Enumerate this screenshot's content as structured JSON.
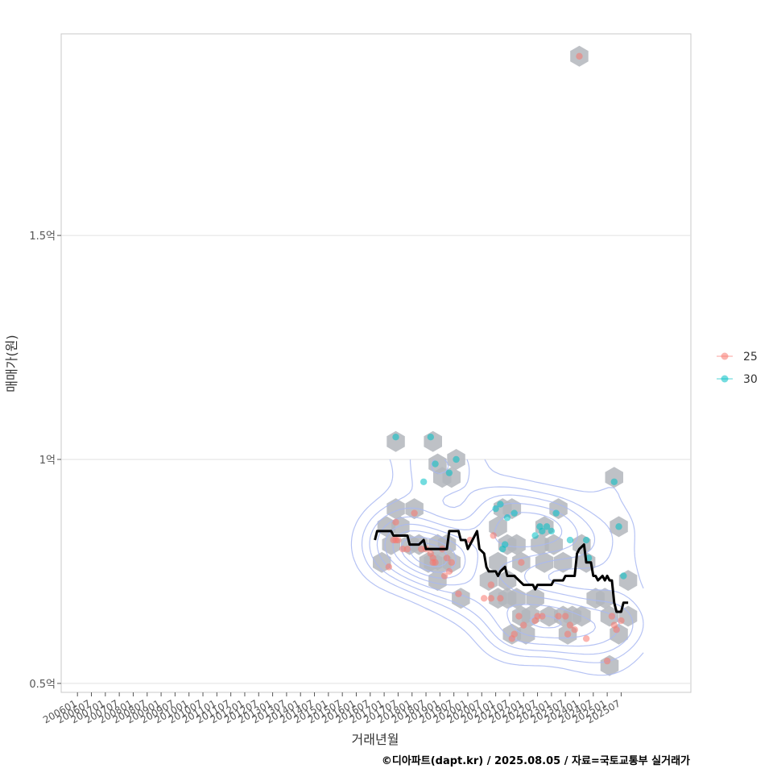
{
  "chart_data": {
    "type": "scatter",
    "xlabel": "거래년월",
    "ylabel": "매매가(원)",
    "caption": "©디아파트(dapt.kr) / 2025.08.05 / 자료=국토교통부 실거래가",
    "x_ticks": [
      "200601",
      "200607",
      "200701",
      "200707",
      "200801",
      "200807",
      "200901",
      "200907",
      "201001",
      "201007",
      "201101",
      "201107",
      "201201",
      "201207",
      "201301",
      "201307",
      "201401",
      "201407",
      "201501",
      "201507",
      "201601",
      "201607",
      "201701",
      "201707",
      "201801",
      "201807",
      "201901",
      "201907",
      "202001",
      "202007",
      "202101",
      "202107",
      "202201",
      "202207",
      "202301",
      "202307",
      "202401",
      "202407",
      "202501",
      "202507"
    ],
    "x_range": [
      "2005-06",
      "2028-01"
    ],
    "y_ticks": [
      {
        "value": 0.5,
        "label": "0.5억"
      },
      {
        "value": 1.0,
        "label": "1억"
      },
      {
        "value": 1.5,
        "label": "1.5억"
      }
    ],
    "ylim": [
      0.48,
      1.95
    ],
    "grid": true,
    "legend_position": "right",
    "series": [
      {
        "name": "25",
        "color": "#F8766D",
        "points": [
          [
            "2017-03",
            0.76
          ],
          [
            "2017-05",
            0.82
          ],
          [
            "2017-06",
            0.82
          ],
          [
            "2017-06",
            0.86
          ],
          [
            "2017-07",
            0.82
          ],
          [
            "2017-09",
            0.8
          ],
          [
            "2017-11",
            0.8
          ],
          [
            "2018-02",
            0.88
          ],
          [
            "2018-05",
            0.8
          ],
          [
            "2018-07",
            0.8
          ],
          [
            "2018-09",
            0.79
          ],
          [
            "2018-10",
            0.77
          ],
          [
            "2018-10",
            0.78
          ],
          [
            "2018-11",
            0.77
          ],
          [
            "2019-02",
            0.8
          ],
          [
            "2019-03",
            0.74
          ],
          [
            "2019-04",
            0.78
          ],
          [
            "2019-05",
            0.75
          ],
          [
            "2019-06",
            0.77
          ],
          [
            "2019-09",
            0.7
          ],
          [
            "2020-02",
            0.82
          ],
          [
            "2020-08",
            0.69
          ],
          [
            "2020-11",
            0.72
          ],
          [
            "2020-11",
            0.69
          ],
          [
            "2020-12",
            0.83
          ],
          [
            "2021-03",
            0.69
          ],
          [
            "2021-08",
            0.6
          ],
          [
            "2021-09",
            0.61
          ],
          [
            "2021-11",
            0.65
          ],
          [
            "2021-12",
            0.77
          ],
          [
            "2022-01",
            0.63
          ],
          [
            "2022-06",
            0.64
          ],
          [
            "2022-07",
            0.65
          ],
          [
            "2022-09",
            0.65
          ],
          [
            "2023-04",
            0.65
          ],
          [
            "2023-07",
            0.65
          ],
          [
            "2023-08",
            0.61
          ],
          [
            "2023-09",
            0.63
          ],
          [
            "2023-11",
            0.62
          ],
          [
            "2024-01",
            1.9
          ],
          [
            "2024-04",
            0.6
          ],
          [
            "2025-01",
            0.55
          ],
          [
            "2025-03",
            0.65
          ],
          [
            "2025-04",
            0.63
          ],
          [
            "2025-05",
            0.62
          ],
          [
            "2025-07",
            0.64
          ]
        ]
      },
      {
        "name": "30",
        "color": "#00BFC4",
        "points": [
          [
            "2017-06",
            1.05
          ],
          [
            "2018-06",
            0.95
          ],
          [
            "2018-09",
            1.05
          ],
          [
            "2018-11",
            0.99
          ],
          [
            "2019-05",
            0.97
          ],
          [
            "2019-08",
            1.0
          ],
          [
            "2021-01",
            0.89
          ],
          [
            "2021-03",
            0.9
          ],
          [
            "2021-04",
            0.8
          ],
          [
            "2021-05",
            0.81
          ],
          [
            "2021-06",
            0.87
          ],
          [
            "2021-09",
            0.88
          ],
          [
            "2022-06",
            0.83
          ],
          [
            "2022-08",
            0.85
          ],
          [
            "2022-09",
            0.84
          ],
          [
            "2022-11",
            0.85
          ],
          [
            "2023-01",
            0.84
          ],
          [
            "2023-03",
            0.88
          ],
          [
            "2023-09",
            0.82
          ],
          [
            "2024-04",
            0.82
          ],
          [
            "2024-05",
            0.78
          ],
          [
            "2025-04",
            0.95
          ],
          [
            "2025-06",
            0.85
          ],
          [
            "2025-08",
            0.74
          ]
        ]
      }
    ],
    "trend": [
      [
        "2016-09",
        0.82
      ],
      [
        "2016-10",
        0.84
      ],
      [
        "2016-12",
        0.84
      ],
      [
        "2017-04",
        0.84
      ],
      [
        "2017-05",
        0.83
      ],
      [
        "2017-11",
        0.83
      ],
      [
        "2017-12",
        0.81
      ],
      [
        "2018-04",
        0.81
      ],
      [
        "2018-06",
        0.82
      ],
      [
        "2018-07",
        0.8
      ],
      [
        "2018-09",
        0.8
      ],
      [
        "2019-02",
        0.8
      ],
      [
        "2019-04",
        0.8
      ],
      [
        "2019-05",
        0.84
      ],
      [
        "2019-09",
        0.84
      ],
      [
        "2019-10",
        0.82
      ],
      [
        "2019-12",
        0.82
      ],
      [
        "2020-01",
        0.8
      ],
      [
        "2020-03",
        0.82
      ],
      [
        "2020-05",
        0.84
      ],
      [
        "2020-06",
        0.8
      ],
      [
        "2020-08",
        0.79
      ],
      [
        "2020-09",
        0.76
      ],
      [
        "2020-10",
        0.75
      ],
      [
        "2021-01",
        0.75
      ],
      [
        "2021-02",
        0.74
      ],
      [
        "2021-03",
        0.75
      ],
      [
        "2021-05",
        0.76
      ],
      [
        "2021-06",
        0.74
      ],
      [
        "2021-09",
        0.74
      ],
      [
        "2021-11",
        0.73
      ],
      [
        "2022-01",
        0.72
      ],
      [
        "2022-05",
        0.72
      ],
      [
        "2022-06",
        0.71
      ],
      [
        "2022-07",
        0.72
      ],
      [
        "2022-09",
        0.72
      ],
      [
        "2023-01",
        0.72
      ],
      [
        "2023-02",
        0.73
      ],
      [
        "2023-06",
        0.73
      ],
      [
        "2023-07",
        0.74
      ],
      [
        "2023-11",
        0.74
      ],
      [
        "2023-12",
        0.79
      ],
      [
        "2024-01",
        0.8
      ],
      [
        "2024-03",
        0.81
      ],
      [
        "2024-04",
        0.77
      ],
      [
        "2024-06",
        0.77
      ],
      [
        "2024-07",
        0.74
      ],
      [
        "2024-08",
        0.74
      ],
      [
        "2024-09",
        0.73
      ],
      [
        "2024-11",
        0.74
      ],
      [
        "2024-12",
        0.73
      ],
      [
        "2025-01",
        0.74
      ],
      [
        "2025-02",
        0.73
      ],
      [
        "2025-03",
        0.73
      ],
      [
        "2025-04",
        0.68
      ],
      [
        "2025-05",
        0.66
      ],
      [
        "2025-07",
        0.66
      ],
      [
        "2025-08",
        0.68
      ],
      [
        "2025-10",
        0.68
      ]
    ],
    "hex_density": [
      [
        "2017-06",
        1.04
      ],
      [
        "2018-10",
        1.04
      ],
      [
        "2018-12",
        0.99
      ],
      [
        "2019-02",
        0.96
      ],
      [
        "2019-06",
        0.96
      ],
      [
        "2019-08",
        1.0
      ],
      [
        "2016-12",
        0.77
      ],
      [
        "2017-02",
        0.85
      ],
      [
        "2017-04",
        0.81
      ],
      [
        "2017-06",
        0.89
      ],
      [
        "2017-08",
        0.85
      ],
      [
        "2018-02",
        0.89
      ],
      [
        "2017-12",
        0.81
      ],
      [
        "2018-04",
        0.81
      ],
      [
        "2018-08",
        0.77
      ],
      [
        "2018-10",
        0.77
      ],
      [
        "2018-12",
        0.81
      ],
      [
        "2018-12",
        0.73
      ],
      [
        "2019-02",
        0.77
      ],
      [
        "2019-04",
        0.81
      ],
      [
        "2019-06",
        0.77
      ],
      [
        "2019-10",
        0.69
      ],
      [
        "2021-02",
        0.85
      ],
      [
        "2021-04",
        0.89
      ],
      [
        "2021-06",
        0.81
      ],
      [
        "2021-08",
        0.89
      ],
      [
        "2020-10",
        0.73
      ],
      [
        "2021-02",
        0.77
      ],
      [
        "2021-06",
        0.73
      ],
      [
        "2021-10",
        0.81
      ],
      [
        "2021-12",
        0.77
      ],
      [
        "2021-02",
        0.69
      ],
      [
        "2021-06",
        0.69
      ],
      [
        "2021-10",
        0.69
      ],
      [
        "2021-08",
        0.61
      ],
      [
        "2021-12",
        0.65
      ],
      [
        "2022-02",
        0.61
      ],
      [
        "2022-04",
        0.65
      ],
      [
        "2022-06",
        0.69
      ],
      [
        "2022-08",
        0.81
      ],
      [
        "2022-10",
        0.85
      ],
      [
        "2022-10",
        0.77
      ],
      [
        "2023-02",
        0.81
      ],
      [
        "2023-04",
        0.89
      ],
      [
        "2023-06",
        0.77
      ],
      [
        "2022-12",
        0.65
      ],
      [
        "2023-06",
        0.65
      ],
      [
        "2023-08",
        0.61
      ],
      [
        "2023-10",
        0.65
      ],
      [
        "2024-02",
        0.65
      ],
      [
        "2024-02",
        0.81
      ],
      [
        "2024-04",
        0.77
      ],
      [
        "2024-08",
        0.69
      ],
      [
        "2024-12",
        0.69
      ],
      [
        "2025-04",
        0.96
      ],
      [
        "2025-02",
        0.65
      ],
      [
        "2025-06",
        0.61
      ],
      [
        "2025-06",
        0.85
      ],
      [
        "2025-10",
        0.73
      ],
      [
        "2025-10",
        0.65
      ],
      [
        "2025-02",
        0.54
      ],
      [
        "2024-01",
        1.9
      ]
    ]
  }
}
